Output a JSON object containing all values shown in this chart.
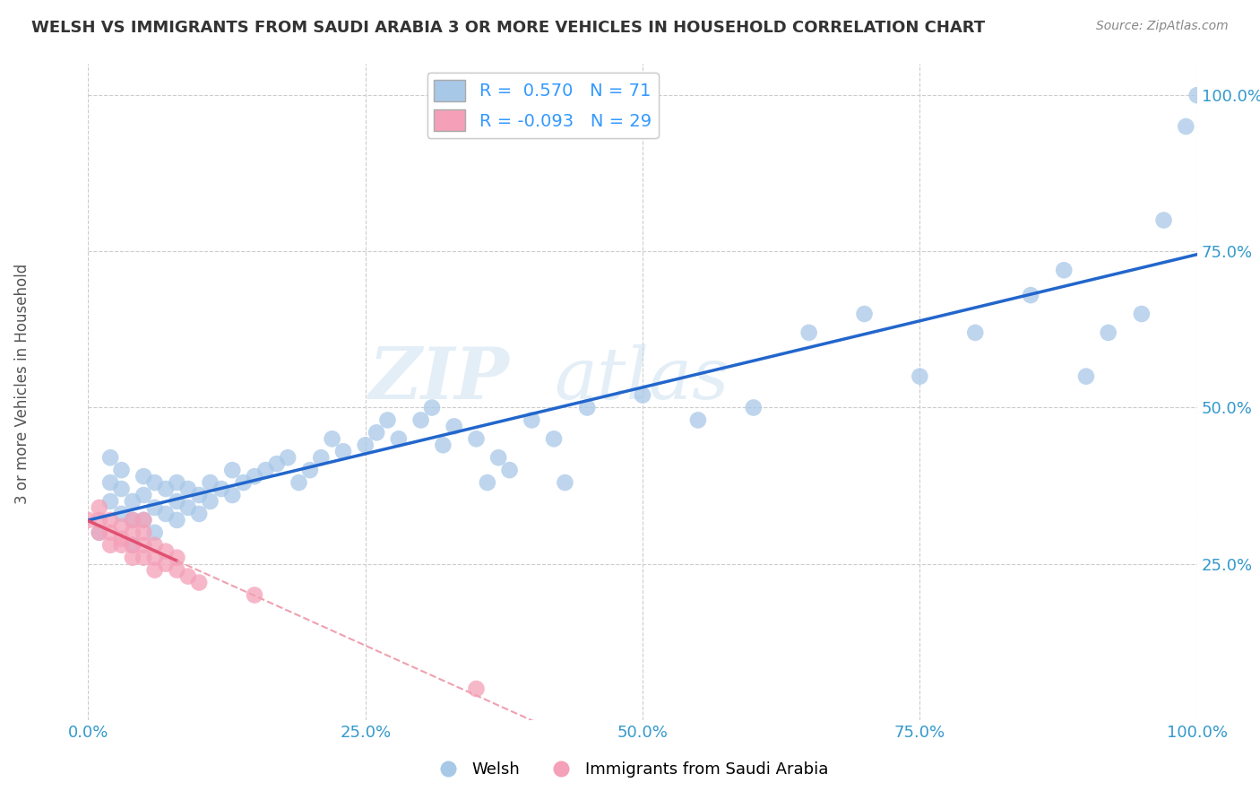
{
  "title": "WELSH VS IMMIGRANTS FROM SAUDI ARABIA 3 OR MORE VEHICLES IN HOUSEHOLD CORRELATION CHART",
  "source": "Source: ZipAtlas.com",
  "ylabel": "3 or more Vehicles in Household",
  "xlabel": "",
  "xlim": [
    0,
    100
  ],
  "ylim": [
    0,
    105
  ],
  "watermark_zip": "ZIP",
  "watermark_atlas": "atlas",
  "legend_r_blue": " 0.570",
  "legend_n_blue": "71",
  "legend_r_pink": "-0.093",
  "legend_n_pink": "29",
  "legend_label_blue": "Welsh",
  "legend_label_pink": "Immigrants from Saudi Arabia",
  "blue_color": "#a8c8e8",
  "pink_color": "#f4a0b8",
  "trend_blue_color": "#2266cc",
  "trend_pink_solid_color": "#e05070",
  "trend_pink_dash_color": "#f0a0b0",
  "blue_scatter": {
    "x": [
      1,
      2,
      2,
      2,
      3,
      3,
      3,
      4,
      4,
      4,
      5,
      5,
      5,
      6,
      6,
      6,
      7,
      7,
      8,
      8,
      8,
      9,
      9,
      10,
      10,
      11,
      11,
      12,
      13,
      13,
      14,
      15,
      16,
      17,
      18,
      19,
      20,
      21,
      22,
      23,
      25,
      26,
      27,
      28,
      30,
      31,
      32,
      33,
      35,
      36,
      37,
      38,
      40,
      42,
      43,
      45,
      50,
      55,
      60,
      65,
      70,
      75,
      80,
      85,
      88,
      90,
      92,
      95,
      97,
      99,
      100
    ],
    "y": [
      30,
      35,
      38,
      42,
      33,
      37,
      40,
      28,
      32,
      35,
      32,
      36,
      39,
      30,
      34,
      38,
      33,
      37,
      32,
      35,
      38,
      34,
      37,
      33,
      36,
      35,
      38,
      37,
      36,
      40,
      38,
      39,
      40,
      41,
      42,
      38,
      40,
      42,
      45,
      43,
      44,
      46,
      48,
      45,
      48,
      50,
      44,
      47,
      45,
      38,
      42,
      40,
      48,
      45,
      38,
      50,
      52,
      48,
      50,
      62,
      65,
      55,
      62,
      68,
      72,
      55,
      62,
      65,
      80,
      95,
      100
    ]
  },
  "pink_scatter": {
    "x": [
      0,
      1,
      1,
      1,
      2,
      2,
      2,
      3,
      3,
      3,
      4,
      4,
      4,
      4,
      5,
      5,
      5,
      5,
      6,
      6,
      6,
      7,
      7,
      8,
      8,
      9,
      10,
      15,
      35
    ],
    "y": [
      32,
      30,
      32,
      34,
      28,
      30,
      32,
      28,
      29,
      31,
      26,
      28,
      30,
      32,
      26,
      28,
      30,
      32,
      24,
      26,
      28,
      25,
      27,
      24,
      26,
      23,
      22,
      20,
      5
    ]
  },
  "xtick_labels": [
    "0.0%",
    "25.0%",
    "50.0%",
    "75.0%",
    "100.0%"
  ],
  "xtick_positions": [
    0,
    25,
    50,
    75,
    100
  ],
  "ytick_labels": [
    "25.0%",
    "50.0%",
    "75.0%",
    "100.0%"
  ],
  "ytick_positions": [
    25,
    50,
    75,
    100
  ],
  "background_color": "#ffffff",
  "grid_color": "#cccccc"
}
